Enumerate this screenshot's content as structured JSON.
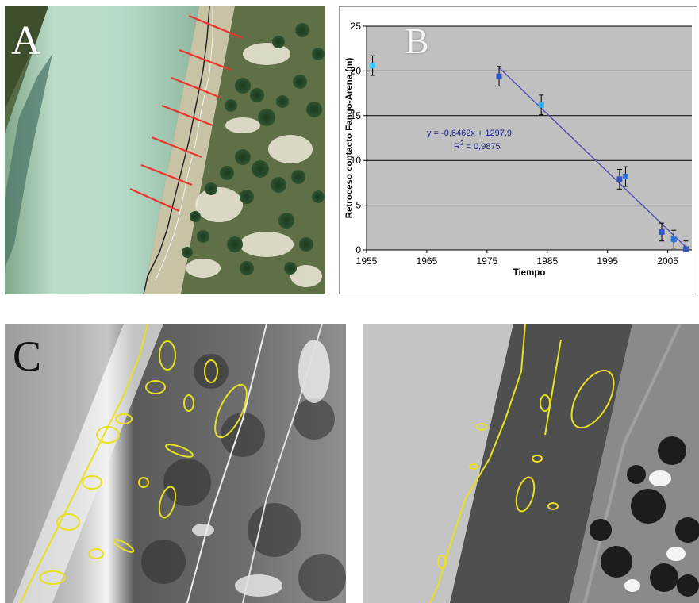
{
  "panels": {
    "a_label": "A",
    "b_label": "B",
    "c_label": "C"
  },
  "colors": {
    "plot_background": "#c0c0c0",
    "gridline": "#000000",
    "point_light": "#33ccff",
    "point_dark": "#3355cc",
    "regression_line": "#4a4ab0",
    "equation_text": "#1a1f8a",
    "transect_red": "#e8352c",
    "contour_yellow": "#e8e020"
  },
  "chart_data": {
    "type": "scatter",
    "xlabel": "Tiempo",
    "ylabel": "Retroceso contacto Fango-Arena (m)",
    "xlim": [
      1955,
      2009
    ],
    "ylim": [
      0,
      25
    ],
    "x_ticks": [
      "1955",
      "1965",
      "1975",
      "1985",
      "1995",
      "2005"
    ],
    "y_ticks": [
      "0",
      "5",
      "10",
      "15",
      "20",
      "25"
    ],
    "grid": "horizontal",
    "series": [
      {
        "x": [
          1956,
          1977,
          1984,
          1997,
          1998,
          2004,
          2006,
          2008
        ],
        "y": [
          20.6,
          19.4,
          16.2,
          7.9,
          8.2,
          2.0,
          1.2,
          0.1
        ],
        "error": [
          1.1,
          1.1,
          1.1,
          1.1,
          1.1,
          1.0,
          1.0,
          0.9
        ],
        "colors": [
          "#33ccff",
          "#3355cc",
          "#33aaee",
          "#3355cc",
          "#3377dd",
          "#3355cc",
          "#3377dd",
          "#3355cc"
        ]
      }
    ],
    "trendline": {
      "type": "linear",
      "slope": -0.6462,
      "intercept": 1297.9,
      "x_range": [
        1977,
        2008
      ]
    },
    "annotations": {
      "equation": "y = -0,6462x + 1297,9",
      "r2_main": "R",
      "r2_sup": "2",
      "r2_value": " = 0,9875"
    }
  }
}
